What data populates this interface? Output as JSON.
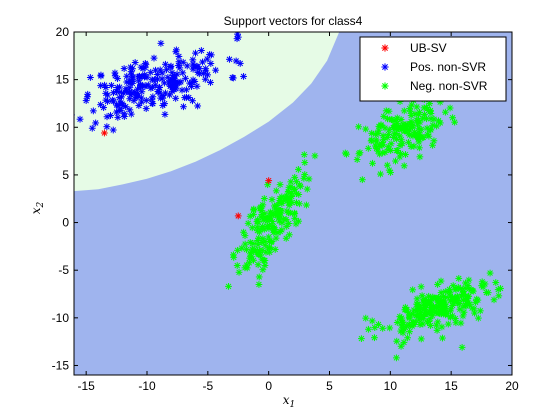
{
  "chart_data": {
    "type": "scatter",
    "title": "Support vectors for class4",
    "xlabel": "x",
    "xlabel_sub": "1",
    "ylabel": "x",
    "ylabel_sub": "2",
    "xlim": [
      -16,
      20
    ],
    "ylim": [
      -16,
      20
    ],
    "xticks": [
      -15,
      -10,
      -5,
      0,
      5,
      10,
      15,
      20
    ],
    "yticks": [
      -15,
      -10,
      -5,
      0,
      5,
      10,
      15,
      20
    ],
    "grid": false,
    "legend_position": "top-right",
    "background": {
      "outer_region_color": "#9fb4ee",
      "inner_region_color": "#e6fbe6",
      "boundary": [
        [
          -16,
          3.3
        ],
        [
          -14,
          3.5
        ],
        [
          -12,
          4.0
        ],
        [
          -10,
          4.6
        ],
        [
          -8,
          5.4
        ],
        [
          -6,
          6.4
        ],
        [
          -4,
          7.6
        ],
        [
          -2,
          9.0
        ],
        [
          0,
          10.6
        ],
        [
          2,
          12.6
        ],
        [
          3.5,
          14.6
        ],
        [
          4.8,
          17.0
        ],
        [
          5.8,
          20
        ]
      ]
    },
    "series": [
      {
        "name": "UB-SV",
        "color": "#ff0000",
        "marker": "asterisk",
        "points": [
          [
            -13.5,
            9.4
          ],
          [
            0,
            4.4
          ],
          [
            -2.5,
            0.7
          ]
        ]
      },
      {
        "name": "Pos. non-SVR",
        "color": "#0000ff",
        "marker": "asterisk",
        "cluster": {
          "center": [
            -9.5,
            14.5
          ],
          "spread": [
            3.0,
            1.8
          ],
          "rho": 0.55,
          "count": 230,
          "seed": 11
        },
        "points": [
          [
            -14.5,
            9.9
          ],
          [
            -2.6,
            19.3
          ],
          [
            -14.9,
            13.2
          ],
          [
            -15.0,
            12.8
          ],
          [
            -12.5,
            11.6
          ]
        ]
      },
      {
        "name": "Neg. non-SVR",
        "color": "#00ff00",
        "marker": "asterisk",
        "clusters": [
          {
            "center": [
              11,
              9.5
            ],
            "spread": [
              1.7,
              1.6
            ],
            "rho": 0.45,
            "count": 170,
            "seed": 23
          },
          {
            "center": [
              0.2,
              0
            ],
            "spread": [
              1.3,
              2.6
            ],
            "rho": 0.72,
            "count": 180,
            "seed": 37
          },
          {
            "center": [
              14,
              -9
            ],
            "spread": [
              2.4,
              1.5
            ],
            "rho": 0.65,
            "count": 230,
            "seed": 53
          }
        ],
        "points": [
          [
            7.7,
            4.5
          ],
          [
            6.3,
            7.3
          ],
          [
            12.0,
            13.7
          ],
          [
            3.8,
            7.0
          ],
          [
            -3.3,
            -6.7
          ],
          [
            10.5,
            -14.2
          ],
          [
            8.2,
            -11.2
          ],
          [
            18.2,
            -5.3
          ],
          [
            15.9,
            -13.1
          ],
          [
            -0.8,
            -6.5
          ]
        ]
      }
    ]
  }
}
